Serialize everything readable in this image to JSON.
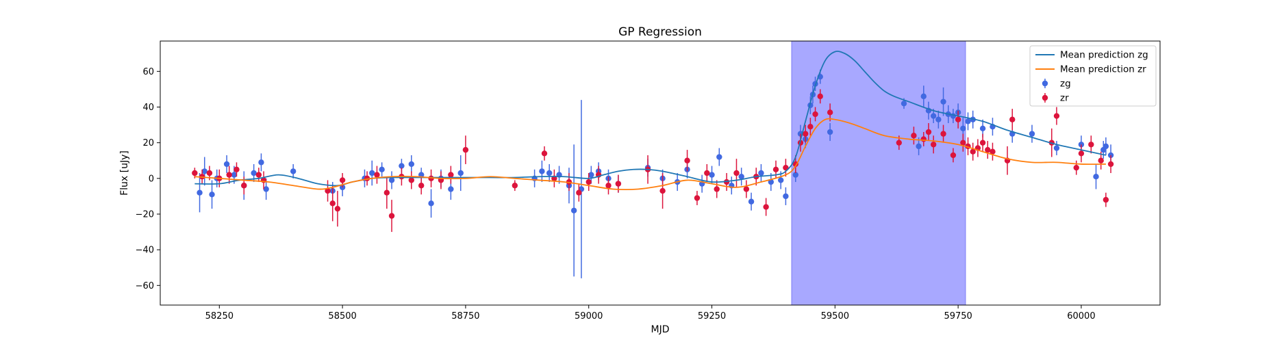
{
  "chart_data": {
    "type": "scatter",
    "title": "GP Regression",
    "xlabel": "MJD",
    "ylabel": "Flux [uJy]",
    "xlim": [
      58130,
      60160
    ],
    "ylim": [
      -71,
      77
    ],
    "xticks": [
      58250,
      58500,
      58750,
      59000,
      59250,
      59500,
      59750,
      60000
    ],
    "yticks": [
      -60,
      -40,
      -20,
      0,
      20,
      40,
      60
    ],
    "grid": false,
    "legend_position": "top-right",
    "highlight_span": {
      "x": [
        59412,
        59765
      ],
      "color": "#a8a8ff"
    },
    "colors": {
      "zg_line": "#1f77b4",
      "zr_line": "#ff7f0e",
      "zg_points": "#4169e1",
      "zr_points": "#dc143c"
    },
    "legend": [
      {
        "label": "Mean prediction zg",
        "kind": "line",
        "color": "#1f77b4"
      },
      {
        "label": "Mean prediction zr",
        "kind": "line",
        "color": "#ff7f0e"
      },
      {
        "label": "zg",
        "kind": "errorbar",
        "color": "#4169e1"
      },
      {
        "label": "zr",
        "kind": "errorbar",
        "color": "#dc143c"
      }
    ],
    "series": [
      {
        "name": "Mean prediction zg",
        "type": "line",
        "x": [
          58200,
          58250,
          58290,
          58330,
          58370,
          58410,
          58450,
          58490,
          58520,
          58560,
          58600,
          58650,
          58700,
          58750,
          58800,
          58850,
          58900,
          58950,
          59000,
          59030,
          59060,
          59090,
          59120,
          59150,
          59200,
          59250,
          59300,
          59340,
          59380,
          59400,
          59420,
          59440,
          59460,
          59480,
          59500,
          59520,
          59540,
          59560,
          59580,
          59600,
          59620,
          59650,
          59700,
          59750,
          59800,
          59850,
          59900,
          59950,
          60000,
          60050
        ],
        "y": [
          -3,
          -3,
          -1,
          0,
          2,
          0,
          -3,
          -4,
          -2,
          0,
          0.5,
          0.5,
          0.5,
          0.5,
          0.5,
          0.5,
          1,
          1,
          0,
          2,
          4,
          5,
          5,
          4,
          1,
          -2,
          -1,
          1,
          2,
          4,
          12,
          32,
          52,
          66,
          71,
          70,
          66,
          60,
          54,
          49,
          46,
          43,
          38,
          35,
          32,
          27,
          23,
          19,
          16,
          13
        ]
      },
      {
        "name": "Mean prediction zr",
        "type": "line",
        "x": [
          58200,
          58250,
          58300,
          58350,
          58400,
          58450,
          58480,
          58520,
          58560,
          58600,
          58650,
          58700,
          58750,
          58800,
          58850,
          58900,
          58950,
          59000,
          59050,
          59100,
          59150,
          59200,
          59250,
          59300,
          59350,
          59400,
          59420,
          59440,
          59460,
          59480,
          59500,
          59530,
          59560,
          59600,
          59650,
          59700,
          59750,
          59800,
          59850,
          59900,
          59950,
          60000,
          60050
        ],
        "y": [
          1,
          0,
          -1,
          -2,
          -4,
          -6,
          -5,
          -2,
          0,
          1,
          1,
          0,
          0,
          1,
          0,
          -1,
          -2,
          -4,
          -6,
          -6,
          -4,
          -1,
          -3,
          -5,
          -2,
          2,
          7,
          18,
          28,
          33,
          33,
          31,
          28,
          24,
          22,
          21,
          19,
          15,
          11,
          9,
          9,
          8,
          8
        ]
      },
      {
        "name": "zg",
        "type": "errorbar",
        "x": [
          58210,
          58220,
          58235,
          58245,
          58265,
          58280,
          58300,
          58320,
          58335,
          58345,
          58400,
          58480,
          58500,
          58545,
          58560,
          58580,
          58600,
          58620,
          58640,
          58660,
          58680,
          58700,
          58720,
          58740,
          58890,
          58905,
          58920,
          58940,
          58960,
          58970,
          58985,
          59005,
          59020,
          59040,
          59060,
          59120,
          59150,
          59180,
          59200,
          59230,
          59250,
          59265,
          59290,
          59310,
          59330,
          59350,
          59370,
          59390,
          59400,
          59420,
          59430,
          59440,
          59450,
          59455,
          59460,
          59470,
          59490,
          59640,
          59670,
          59680,
          59690,
          59700,
          59710,
          59720,
          59730,
          59740,
          59750,
          59760,
          59770,
          59780,
          59800,
          59820,
          59860,
          59900,
          59950,
          60000,
          60030,
          60045,
          60050,
          60060
        ],
        "y": [
          -8,
          4,
          -9,
          0,
          8,
          2,
          -4,
          3,
          9,
          -6,
          4,
          -7,
          -5,
          0,
          3,
          5,
          -1,
          7,
          8,
          2,
          -14,
          0,
          -6,
          3,
          0,
          4,
          3,
          2,
          -4,
          -18,
          -6,
          2,
          4,
          0,
          -3,
          6,
          0,
          -2,
          5,
          -3,
          2,
          12,
          -4,
          1,
          -13,
          3,
          -2,
          -1,
          -10,
          2,
          25,
          22,
          41,
          47,
          53,
          57,
          26,
          42,
          18,
          46,
          38,
          35,
          33,
          43,
          36,
          35,
          37,
          28,
          32,
          33,
          28,
          29,
          25,
          25,
          17,
          19,
          1,
          16,
          18,
          13
        ],
        "err": [
          11,
          8,
          8,
          5,
          5,
          5,
          8,
          5,
          5,
          6,
          4,
          5,
          5,
          5,
          7,
          4,
          5,
          4,
          5,
          4,
          8,
          5,
          6,
          10,
          5,
          6,
          5,
          5,
          10,
          37,
          50,
          5,
          5,
          5,
          5,
          5,
          5,
          5,
          5,
          5,
          5,
          5,
          5,
          5,
          5,
          5,
          5,
          5,
          5,
          4,
          5,
          5,
          5,
          5,
          4,
          4,
          5,
          3,
          5,
          6,
          5,
          4,
          5,
          8,
          5,
          4,
          5,
          6,
          5,
          5,
          5,
          5,
          5,
          5,
          4,
          5,
          7,
          5,
          5,
          6
        ]
      },
      {
        "name": "zr",
        "type": "errorbar",
        "x": [
          58200,
          58215,
          58230,
          58250,
          58270,
          58285,
          58300,
          58330,
          58340,
          58470,
          58480,
          58490,
          58500,
          58550,
          58570,
          58590,
          58600,
          58620,
          58640,
          58660,
          58680,
          58700,
          58720,
          58750,
          58850,
          58910,
          58930,
          58960,
          58980,
          59000,
          59020,
          59040,
          59060,
          59120,
          59150,
          59200,
          59220,
          59240,
          59260,
          59280,
          59300,
          59320,
          59340,
          59360,
          59380,
          59400,
          59420,
          59430,
          59440,
          59450,
          59460,
          59470,
          59490,
          59630,
          59660,
          59680,
          59690,
          59700,
          59720,
          59740,
          59750,
          59760,
          59770,
          59780,
          59790,
          59800,
          59810,
          59820,
          59850,
          59860,
          59940,
          59950,
          59990,
          60000,
          60020,
          60040,
          60050,
          60060
        ],
        "y": [
          3,
          1,
          3,
          0,
          2,
          5,
          -4,
          2,
          -1,
          -7,
          -14,
          -17,
          -1,
          0,
          2,
          -8,
          -21,
          1,
          -1,
          -4,
          0,
          -1,
          2,
          16,
          -4,
          14,
          0,
          -2,
          -8,
          -2,
          2,
          -4,
          -3,
          5,
          -7,
          10,
          -11,
          3,
          -6,
          -2,
          3,
          -6,
          1,
          -16,
          5,
          6,
          8,
          20,
          25,
          29,
          36,
          46,
          37,
          20,
          24,
          22,
          26,
          19,
          25,
          13,
          33,
          20,
          18,
          15,
          17,
          20,
          16,
          15,
          10,
          33,
          20,
          35,
          6,
          14,
          19,
          10,
          -12,
          8
        ],
        "err": [
          3,
          4,
          4,
          5,
          5,
          4,
          5,
          4,
          5,
          6,
          10,
          10,
          4,
          4,
          5,
          9,
          9,
          5,
          5,
          5,
          5,
          5,
          5,
          8,
          3,
          4,
          5,
          5,
          5,
          5,
          5,
          5,
          5,
          8,
          10,
          6,
          4,
          5,
          5,
          5,
          8,
          5,
          5,
          5,
          5,
          5,
          5,
          5,
          5,
          5,
          4,
          4,
          5,
          4,
          5,
          4,
          5,
          5,
          5,
          4,
          5,
          5,
          5,
          5,
          5,
          5,
          5,
          5,
          8,
          6,
          8,
          5,
          4,
          5,
          5,
          5,
          4,
          5
        ]
      }
    ]
  }
}
